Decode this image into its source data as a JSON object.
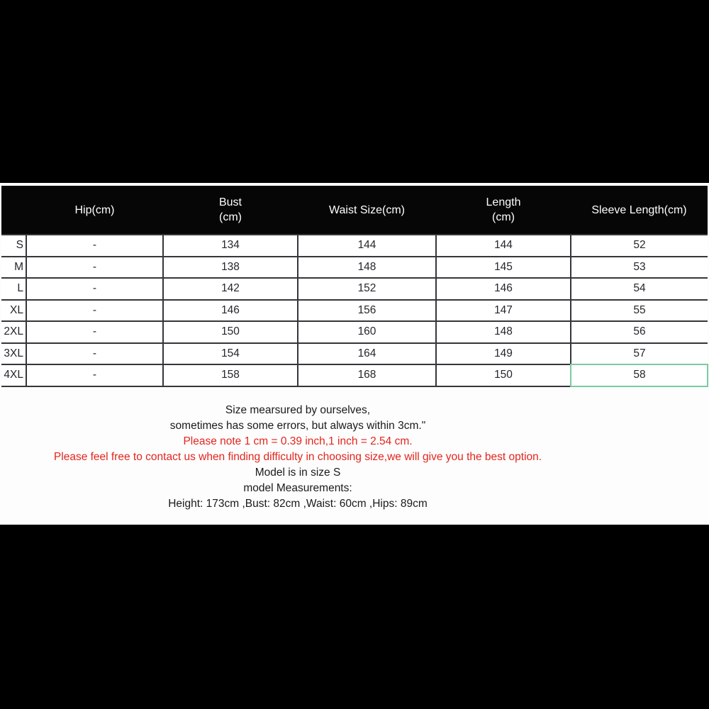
{
  "size_chart": {
    "header": [
      "",
      "Hip(cm)",
      "Bust\n(cm)",
      "Waist Size(cm)",
      "Length\n(cm)",
      "Sleeve Length(cm)"
    ],
    "rows": [
      [
        "S",
        "-",
        "134",
        "144",
        "144",
        "52"
      ],
      [
        "M",
        "-",
        "138",
        "148",
        "145",
        "53"
      ],
      [
        "L",
        "-",
        "142",
        "152",
        "146",
        "54"
      ],
      [
        "XL",
        "-",
        "146",
        "156",
        "147",
        "55"
      ],
      [
        "2XL",
        "-",
        "150",
        "160",
        "148",
        "56"
      ],
      [
        "3XL",
        "-",
        "154",
        "164",
        "149",
        "57"
      ],
      [
        "4XL",
        "-",
        "158",
        "168",
        "150",
        "58"
      ]
    ],
    "highlighted_cell": {
      "row": "4XL",
      "column": "Sleeve Length(cm)",
      "value": "58",
      "border_color": "#7cc9a2"
    }
  },
  "notes": {
    "lines": [
      {
        "text": "Size mearsured by ourselves,",
        "color": "#1a1a1a"
      },
      {
        "text": "sometimes has some errors, but always within 3cm.\"",
        "color": "#1a1a1a"
      },
      {
        "text": "Please note 1 cm = 0.39 inch,1 inch = 2.54 cm.",
        "color": "#e3251d"
      },
      {
        "text": "Please feel free to contact us when finding difficulty in choosing size,we will give you the best option.",
        "color": "#e3251d"
      },
      {
        "text": "Model is in size S",
        "color": "#1a1a1a"
      },
      {
        "text": "model Measurements:",
        "color": "#1a1a1a"
      },
      {
        "text": "Height: 173cm ,Bust: 82cm ,Waist: 60cm ,Hips: 89cm",
        "color": "#1a1a1a"
      }
    ]
  },
  "colors": {
    "table_header_bg": "#060606",
    "grid_line": "#36363a",
    "note_red": "#e3251d",
    "highlight_green": "#7cc9a2",
    "panel_bg": "#fdfdfd",
    "letterbox": "#000000"
  }
}
